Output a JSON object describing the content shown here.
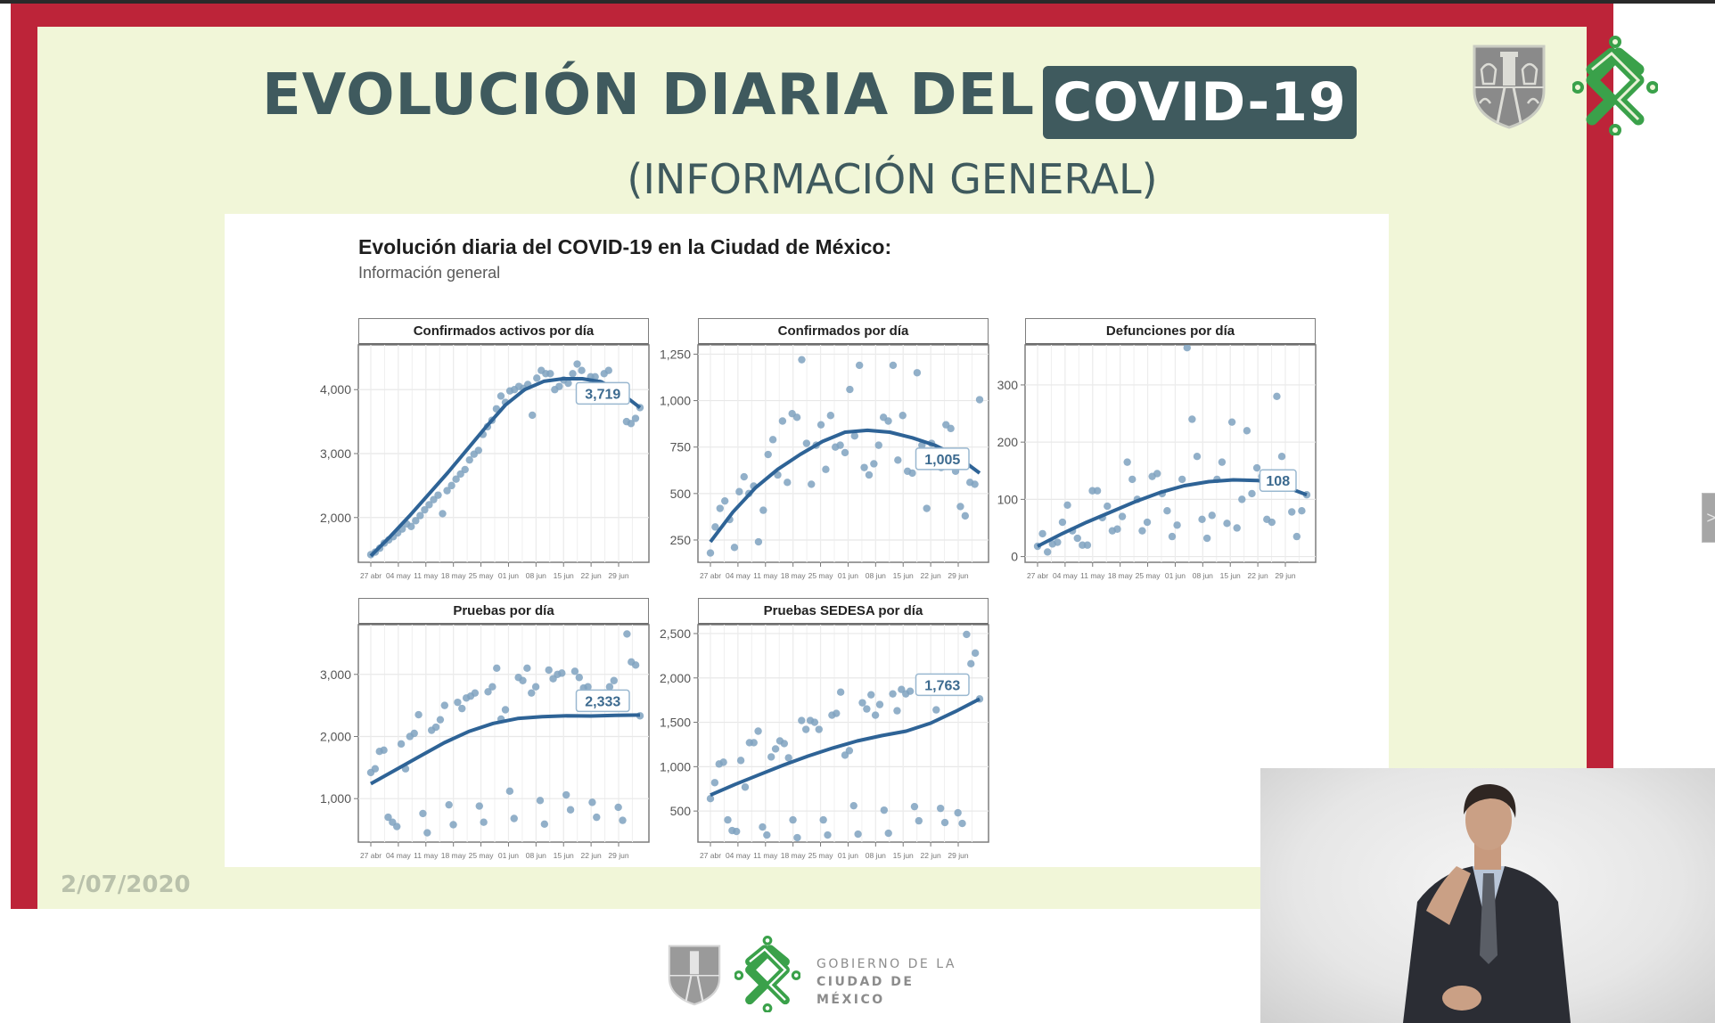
{
  "slide": {
    "title": "EVOLUCIÓN DIARIA DEL",
    "title_badge": "COVID-19",
    "subtitle": "(INFORMACIÓN GENERAL)",
    "date": "2/07/2020",
    "logos": {
      "top_right": [
        "cdmx-shield-icon",
        "cdmx-knot-icon"
      ]
    },
    "footer": {
      "line1": "GOBIERNO DE LA",
      "line2": "CIUDAD DE MÉXICO"
    },
    "colors": {
      "frame": "#bd2439",
      "background": "#f1f6d8",
      "title": "#3f5a5e",
      "accent_green": "#3aa14a",
      "series": "#2e6396",
      "points": "#7fa2c0"
    }
  },
  "figure": {
    "title": "Evolución diaria del COVID-19 en la Ciudad de México:",
    "subtitle": "Información general"
  },
  "interpreter": {
    "description": "sign-language-interpreter-video"
  },
  "navigation": {
    "next_label": ">"
  },
  "chart_data": [
    {
      "type": "scatter",
      "title": "Confirmados activos por día",
      "xlabel": "",
      "ylabel": "",
      "x_ticks": [
        "27-abr",
        "04-may",
        "11-may",
        "18-may",
        "25-may",
        "01-jun",
        "08-jun",
        "15-jun",
        "22-jun",
        "29-jun"
      ],
      "y_ticks": [
        2000,
        3000,
        4000
      ],
      "y_tick_labels": [
        "2,000",
        "3,000",
        "4,000"
      ],
      "ylim": [
        1300,
        4700
      ],
      "grid": true,
      "last_value_label": "3,719",
      "points": [
        1420,
        1460,
        1520,
        1600,
        1650,
        1700,
        1760,
        1820,
        1900,
        1860,
        1950,
        2030,
        2120,
        2200,
        2280,
        2350,
        2060,
        2420,
        2500,
        2600,
        2680,
        2750,
        2900,
        2990,
        3050,
        3300,
        3420,
        3520,
        3700,
        3900,
        3800,
        3980,
        4000,
        4050,
        4020,
        4080,
        3600,
        4180,
        4300,
        4250,
        4250,
        4000,
        4050,
        4150,
        4100,
        4250,
        4400,
        4300,
        3980,
        4200,
        4200,
        4100,
        4250,
        4300,
        4000,
        3980,
        3950,
        3500,
        3470,
        3550,
        3719
      ],
      "trend": [
        1400,
        1700,
        2020,
        2360,
        2700,
        3060,
        3420,
        3760,
        4000,
        4130,
        4170,
        4170,
        4120,
        3950,
        3719
      ]
    },
    {
      "type": "scatter",
      "title": "Confirmados por día",
      "x_ticks": [
        "27-abr",
        "04-may",
        "11-may",
        "18-may",
        "25-may",
        "01-jun",
        "08-jun",
        "15-jun",
        "22-jun",
        "29-jun"
      ],
      "y_ticks": [
        250,
        500,
        750,
        1000,
        1250
      ],
      "y_tick_labels": [
        "250",
        "500",
        "750",
        "1,000",
        "1,250"
      ],
      "ylim": [
        130,
        1300
      ],
      "grid": true,
      "last_value_label": "1,005",
      "points": [
        180,
        320,
        420,
        460,
        360,
        210,
        510,
        590,
        500,
        540,
        240,
        410,
        710,
        790,
        600,
        890,
        560,
        930,
        910,
        1220,
        770,
        550,
        760,
        870,
        630,
        920,
        750,
        760,
        720,
        1060,
        810,
        1190,
        640,
        600,
        660,
        760,
        910,
        890,
        1190,
        680,
        920,
        620,
        610,
        1150,
        760,
        420,
        770,
        690,
        640,
        870,
        850,
        620,
        430,
        380,
        560,
        550,
        1005
      ],
      "trend": [
        240,
        400,
        530,
        630,
        710,
        780,
        830,
        840,
        830,
        800,
        760,
        700,
        610
      ]
    },
    {
      "type": "scatter",
      "title": "Defunciones por día",
      "x_ticks": [
        "27-abr",
        "04-may",
        "11-may",
        "18-may",
        "25-may",
        "01-jun",
        "08-jun",
        "15-jun",
        "22-jun",
        "29-jun"
      ],
      "y_ticks": [
        0,
        100,
        200,
        300
      ],
      "y_tick_labels": [
        "0",
        "100",
        "200",
        "300"
      ],
      "ylim": [
        -10,
        370
      ],
      "grid": true,
      "last_value_label": "108",
      "points": [
        18,
        40,
        8,
        22,
        25,
        60,
        90,
        45,
        32,
        20,
        20,
        115,
        115,
        68,
        88,
        45,
        48,
        70,
        165,
        135,
        100,
        45,
        60,
        140,
        145,
        110,
        80,
        35,
        55,
        135,
        365,
        240,
        175,
        65,
        32,
        72,
        135,
        165,
        58,
        235,
        50,
        100,
        220,
        110,
        155,
        140,
        65,
        60,
        280,
        175,
        128,
        78,
        35,
        80,
        108
      ],
      "trend": [
        18,
        40,
        60,
        78,
        96,
        112,
        124,
        131,
        134,
        133,
        124,
        108
      ]
    },
    {
      "type": "scatter",
      "title": "Pruebas por día",
      "x_ticks": [
        "27-abr",
        "04-may",
        "11-may",
        "18-may",
        "25-may",
        "01-jun",
        "08-jun",
        "15-jun",
        "22-jun",
        "29-jun"
      ],
      "y_ticks": [
        1000,
        2000,
        3000
      ],
      "y_tick_labels": [
        "1,000",
        "2,000",
        "3,000"
      ],
      "ylim": [
        300,
        3800
      ],
      "grid": true,
      "last_value_label": "2,333",
      "points": [
        1420,
        1480,
        1760,
        1780,
        700,
        620,
        550,
        1880,
        1480,
        2000,
        2050,
        2350,
        760,
        450,
        2100,
        2150,
        2270,
        2500,
        900,
        580,
        2550,
        2450,
        2620,
        2650,
        2700,
        880,
        620,
        2720,
        2800,
        3100,
        2280,
        2430,
        1120,
        680,
        2950,
        2900,
        3100,
        2700,
        2800,
        970,
        590,
        3070,
        2930,
        3000,
        3020,
        1060,
        820,
        3050,
        2950,
        2780,
        2800,
        940,
        700,
        2650,
        2700,
        2800,
        2900,
        860,
        650,
        3650,
        3200,
        3150,
        2333
      ],
      "trend": [
        1240,
        1460,
        1680,
        1900,
        2080,
        2210,
        2290,
        2320,
        2333,
        2330,
        2340,
        2345
      ]
    },
    {
      "type": "scatter",
      "title": "Pruebas SEDESA por día",
      "x_ticks": [
        "27-abr",
        "04-may",
        "11-may",
        "18-may",
        "25-may",
        "01-jun",
        "08-jun",
        "15-jun",
        "22-jun",
        "29-jun"
      ],
      "y_ticks": [
        500,
        1000,
        1500,
        2000,
        2500
      ],
      "y_tick_labels": [
        "500",
        "1,000",
        "1,500",
        "2,000",
        "2,500"
      ],
      "ylim": [
        150,
        2600
      ],
      "grid": true,
      "last_value_label": "1,763",
      "points": [
        640,
        820,
        1030,
        1050,
        400,
        280,
        270,
        1070,
        770,
        1270,
        1270,
        1400,
        320,
        230,
        1110,
        1200,
        1290,
        1260,
        1100,
        400,
        200,
        1520,
        1420,
        1520,
        1500,
        1420,
        400,
        230,
        1580,
        1600,
        1840,
        1130,
        1180,
        560,
        240,
        1720,
        1650,
        1810,
        1580,
        1700,
        510,
        250,
        1820,
        1630,
        1870,
        1820,
        1850,
        550,
        390,
        1940,
        1900,
        1880,
        1640,
        530,
        370,
        1900,
        2000,
        480,
        360,
        2490,
        2160,
        2280,
        1763
      ],
      "trend": [
        680,
        800,
        910,
        1020,
        1120,
        1210,
        1290,
        1350,
        1400,
        1490,
        1620,
        1763
      ]
    }
  ]
}
